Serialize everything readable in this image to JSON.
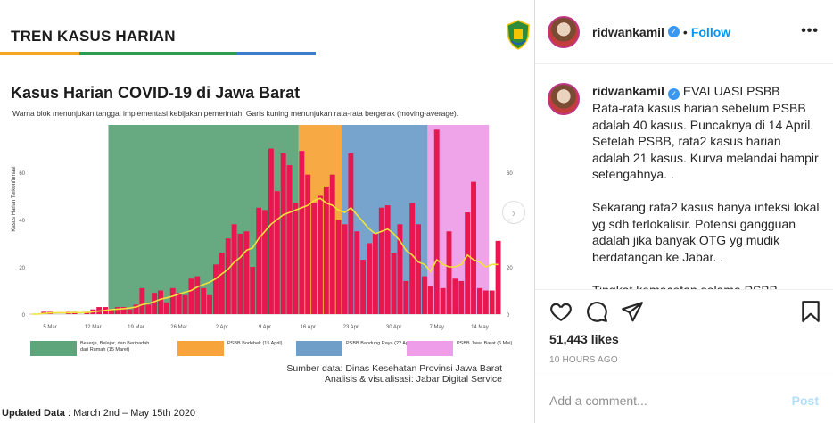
{
  "media": {
    "banner_title": "TREN KASUS HARIAN",
    "banner_colors": [
      "#f5a623",
      "#2e9c4e",
      "#2e9c4e",
      "#3d7cc9"
    ],
    "chart_title": "Kasus Harian COVID-19 di Jawa Barat",
    "chart_subtitle": "Warna blok menunjukan tanggal implementasi kebijakan pemerintah. Garis kuning menunjukan rata-rata bergerak (moving-average).",
    "legend": [
      {
        "label": "Bekerja, Belajar, dan Beribadah dari Rumah (15 Maret)",
        "color": "#5fa57b"
      },
      {
        "label": "PSBB Bodebek (15 April)",
        "color": "#f7a43a"
      },
      {
        "label": "PSBB Bandung Raya (22 April)",
        "color": "#6f9fc9"
      },
      {
        "label": "PSBB Jawa Barat (6 Mei)",
        "color": "#ee9ee8"
      }
    ],
    "source_line1": "Sumber data: Dinas Kesehatan Provinsi Jawa Barat",
    "source_line2": "Analisis & visualisasi: Jabar Digital Service",
    "updated_label": "Updated Data",
    "updated_value": ": March 2nd – May 15th 2020"
  },
  "chart_data": {
    "type": "bar",
    "title": "Kasus Harian COVID-19 di Jawa Barat",
    "ylabel": "Kasus Harian Terkonfirmasi",
    "ylim": [
      0,
      80
    ],
    "yticks": [
      0,
      20,
      40,
      60
    ],
    "xtick_labels": [
      "5 Mar",
      "12 Mar",
      "19 Mar",
      "26 Mar",
      "2 Apr",
      "9 Apr",
      "16 Apr",
      "23 Apr",
      "30 Apr",
      "7 May",
      "14 May"
    ],
    "bar_color": "#e8174f",
    "line_color": "#f2e23a",
    "policy_blocks": [
      {
        "label": "Bekerja, Belajar, dan Beribadah dari Rumah (15 Maret)",
        "color": "#5fa57b",
        "start_day": 13,
        "end_day": 44
      },
      {
        "label": "PSBB Bodebek (15 April)",
        "color": "#f7a43a",
        "start_day": 44,
        "end_day": 51
      },
      {
        "label": "PSBB Bandung Raya (22 April)",
        "color": "#6f9fc9",
        "start_day": 51,
        "end_day": 65
      },
      {
        "label": "PSBB Jawa Barat (6 Mei)",
        "color": "#ee9ee8",
        "start_day": 65,
        "end_day": 75
      }
    ],
    "x_start": "2020-03-02",
    "daily_cases": [
      0,
      0,
      1,
      1,
      0,
      0,
      1,
      1,
      0,
      1,
      2,
      3,
      3,
      2,
      3,
      3,
      2,
      4,
      11,
      4,
      9,
      10,
      5,
      11,
      9,
      8,
      15,
      16,
      11,
      8,
      21,
      26,
      32,
      38,
      34,
      35,
      20,
      45,
      44,
      70,
      52,
      68,
      63,
      47,
      69,
      59,
      47,
      50,
      54,
      59,
      40,
      38,
      68,
      35,
      23,
      30,
      34,
      45,
      46,
      26,
      38,
      14,
      47,
      38,
      16,
      12,
      78,
      11,
      35,
      15,
      14,
      43,
      56,
      11,
      10,
      10,
      31
    ],
    "moving_average": [
      0,
      0,
      0.3,
      0.5,
      0.6,
      0.6,
      0.6,
      0.7,
      0.6,
      0.7,
      1,
      1.3,
      1.6,
      1.9,
      2.1,
      2.3,
      2.6,
      3,
      4,
      4.5,
      5.3,
      6.3,
      6.9,
      7.6,
      8.5,
      9.3,
      10,
      11.5,
      12.5,
      13.5,
      15,
      17,
      19,
      22,
      24,
      27,
      28,
      32,
      35,
      38,
      40,
      42,
      43,
      44,
      45,
      46,
      48,
      49,
      47,
      46,
      44,
      43,
      45,
      42,
      39,
      36,
      34,
      35,
      36,
      34,
      31,
      27,
      25,
      22,
      21,
      18,
      23,
      21,
      20,
      20,
      21,
      25,
      23,
      22,
      20,
      21,
      21
    ]
  },
  "sidebar": {
    "username": "ridwankamil",
    "follow_label": "Follow",
    "more_label": "•••",
    "caption_username": "ridwankamil",
    "caption_text": "EVALUASI PSBB\nRata-rata kasus harian sebelum PSBB adalah 40 kasus. Puncaknya di 14 April. Setelah PSBB, rata2 kasus harian adalah 21 kasus. Kurva melandai hampir setengahnya. .\n\nSekarang rata2 kasus hanya infeksi lokal yg sdh terlokalisir. Potensi gangguan adalah jika banyak OTG yg mudik berdatangan ke Jabar. .\n\nTingkat kemacetan selama PSBB",
    "likes": "51,443 likes",
    "time_ago": "10 HOURS AGO",
    "comment_placeholder": "Add a comment...",
    "post_label": "Post"
  },
  "icons": {
    "like": "heart-icon",
    "comment": "comment-icon",
    "share": "share-icon",
    "save": "bookmark-icon",
    "verified": "verified-badge-icon",
    "next": "chevron-right-icon"
  }
}
